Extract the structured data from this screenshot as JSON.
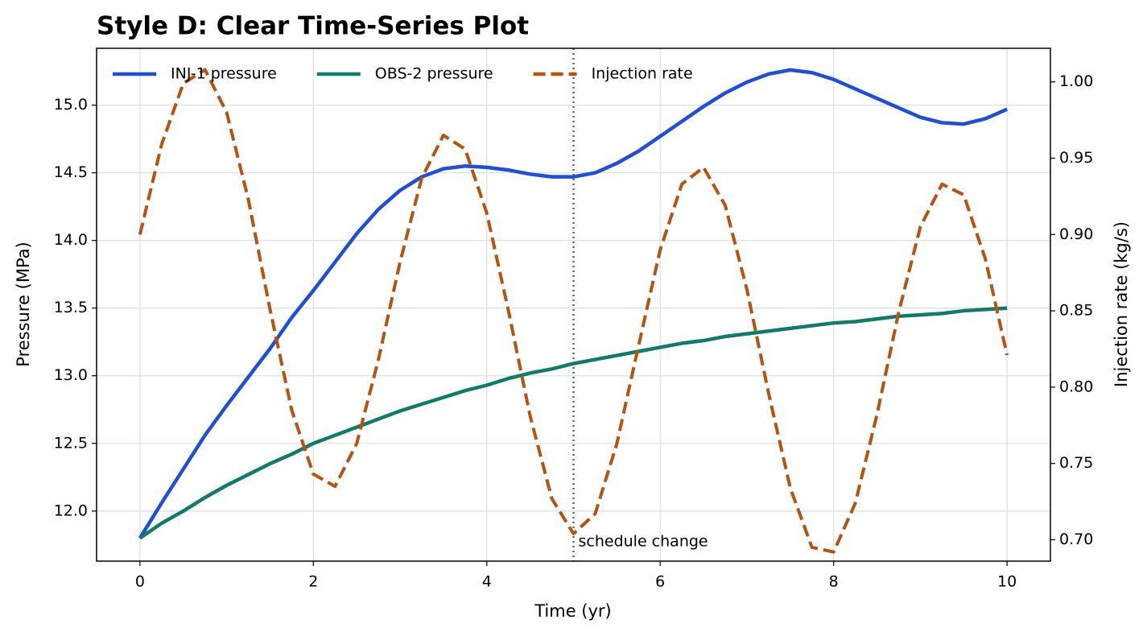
{
  "chart_data": {
    "type": "line",
    "title": "Style D: Clear Time-Series Plot",
    "x_label": "Time (yr)",
    "y_label": "Pressure (MPa)",
    "y2_label": "Injection rate (kg/s)",
    "x": [
      0,
      0.25,
      0.5,
      0.75,
      1,
      1.25,
      1.5,
      1.75,
      2,
      2.25,
      2.5,
      2.75,
      3,
      3.25,
      3.5,
      3.75,
      4,
      4.25,
      4.5,
      4.75,
      5,
      5.25,
      5.5,
      5.75,
      6,
      6.25,
      6.5,
      6.75,
      7,
      7.25,
      7.5,
      7.75,
      8,
      8.25,
      8.5,
      8.75,
      9,
      9.25,
      9.5,
      9.75,
      10
    ],
    "series": [
      {
        "name": "INJ-1 pressure",
        "color": "#1f4fd8",
        "style": "solid",
        "values": [
          11.8,
          12.06,
          12.31,
          12.56,
          12.78,
          12.99,
          13.2,
          13.43,
          13.63,
          13.84,
          14.05,
          14.23,
          14.37,
          14.47,
          14.53,
          14.55,
          14.54,
          14.52,
          14.49,
          14.47,
          14.47,
          14.5,
          14.57,
          14.66,
          14.77,
          14.88,
          14.99,
          15.09,
          15.17,
          15.23,
          15.26,
          15.24,
          15.19,
          15.12,
          15.05,
          14.98,
          14.91,
          14.87,
          14.86,
          14.9,
          14.97
        ]
      },
      {
        "name": "OBS-2 pressure",
        "color": "#107a6b",
        "style": "solid",
        "values": [
          11.8,
          11.91,
          12.0,
          12.1,
          12.19,
          12.27,
          12.35,
          12.42,
          12.5,
          12.56,
          12.62,
          12.68,
          12.74,
          12.79,
          12.84,
          12.89,
          12.93,
          12.98,
          13.02,
          13.05,
          13.09,
          13.12,
          13.15,
          13.18,
          13.21,
          13.24,
          13.26,
          13.29,
          13.31,
          13.33,
          13.35,
          13.37,
          13.39,
          13.4,
          13.42,
          13.44,
          13.45,
          13.46,
          13.48,
          13.49,
          13.5
        ]
      },
      {
        "name": "Injection rate",
        "color": "#b5530f",
        "style": "dashed",
        "axis": "y2",
        "values": [
          0.9,
          0.959,
          0.999,
          1.008,
          0.98,
          0.923,
          0.851,
          0.785,
          0.743,
          0.735,
          0.763,
          0.818,
          0.882,
          0.937,
          0.965,
          0.956,
          0.914,
          0.85,
          0.781,
          0.727,
          0.704,
          0.717,
          0.763,
          0.827,
          0.89,
          0.933,
          0.944,
          0.919,
          0.864,
          0.796,
          0.734,
          0.695,
          0.692,
          0.724,
          0.782,
          0.849,
          0.905,
          0.933,
          0.926,
          0.884,
          0.821
        ]
      }
    ],
    "annotations": [
      {
        "x": 5,
        "text": "schedule change",
        "color": "#5a6378"
      }
    ],
    "xlim": [
      -0.5,
      10.5
    ],
    "xticks": [
      0,
      2,
      4,
      6,
      8,
      10
    ],
    "ylim": [
      11.63,
      15.42
    ],
    "yticks": [
      {
        "value": 12,
        "label": "12.0"
      },
      {
        "value": 12.5,
        "label": "12.5"
      },
      {
        "value": 13,
        "label": "13.0"
      },
      {
        "value": 13.5,
        "label": "13.5"
      },
      {
        "value": 14,
        "label": "14.0"
      },
      {
        "value": 14.5,
        "label": "14.5"
      },
      {
        "value": 15,
        "label": "15.0"
      }
    ],
    "y2lim": [
      0.686,
      1.022
    ],
    "y2ticks": [
      {
        "value": 0.7,
        "label": "0.70"
      },
      {
        "value": 0.75,
        "label": "0.75"
      },
      {
        "value": 0.8,
        "label": "0.80"
      },
      {
        "value": 0.85,
        "label": "0.85"
      },
      {
        "value": 0.9,
        "label": "0.90"
      },
      {
        "value": 0.95,
        "label": "0.95"
      },
      {
        "value": 1,
        "label": "1.00"
      }
    ],
    "grid": true,
    "legend": "upper left"
  }
}
